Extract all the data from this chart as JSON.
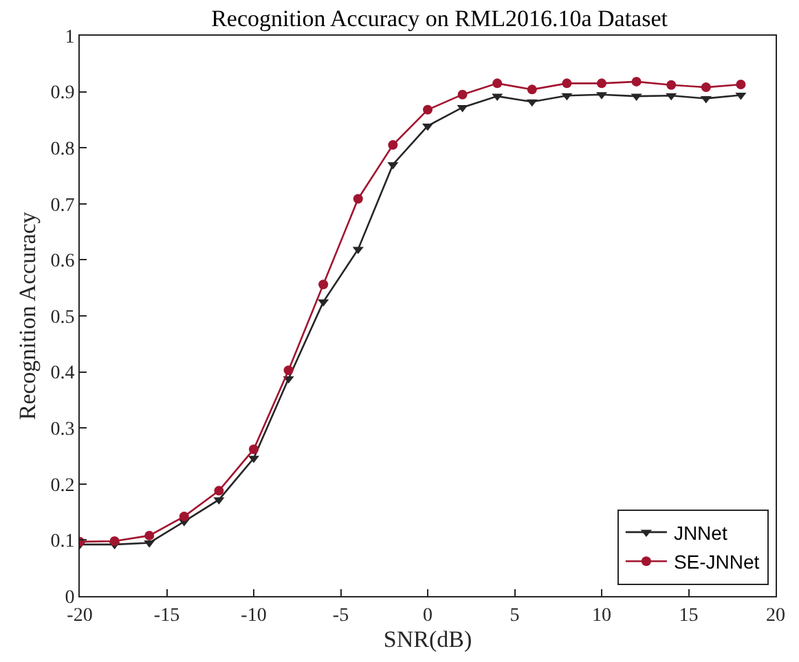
{
  "chart_data": {
    "type": "line",
    "title": "Recognition Accuracy on RML2016.10a Dataset",
    "xlabel": "SNR(dB)",
    "ylabel": "Recognition Accuracy",
    "x": [
      -20,
      -18,
      -16,
      -14,
      -12,
      -10,
      -8,
      -6,
      -4,
      -2,
      0,
      2,
      4,
      6,
      8,
      10,
      12,
      14,
      16,
      18
    ],
    "series": [
      {
        "name": "JNNet",
        "color": "#262626",
        "marker": "triangle",
        "values": [
          0.092,
          0.092,
          0.095,
          0.133,
          0.172,
          0.246,
          0.388,
          0.525,
          0.619,
          0.77,
          0.839,
          0.872,
          0.892,
          0.882,
          0.893,
          0.895,
          0.892,
          0.893,
          0.888,
          0.894
        ]
      },
      {
        "name": "SE-JNNet",
        "color": "#a2142f",
        "marker": "circle",
        "values": [
          0.097,
          0.098,
          0.108,
          0.142,
          0.188,
          0.262,
          0.403,
          0.556,
          0.709,
          0.805,
          0.868,
          0.895,
          0.915,
          0.904,
          0.915,
          0.915,
          0.918,
          0.912,
          0.908,
          0.913
        ]
      }
    ],
    "xlim": [
      -20,
      20
    ],
    "xticks": [
      -20,
      -15,
      -10,
      -5,
      0,
      5,
      10,
      15,
      20
    ],
    "ylim": [
      0,
      1
    ],
    "yticks": [
      0,
      0.1,
      0.2,
      0.3,
      0.4,
      0.5,
      0.6,
      0.7,
      0.8,
      0.9,
      1
    ],
    "legend": "bottom right",
    "line_style": "solid"
  }
}
